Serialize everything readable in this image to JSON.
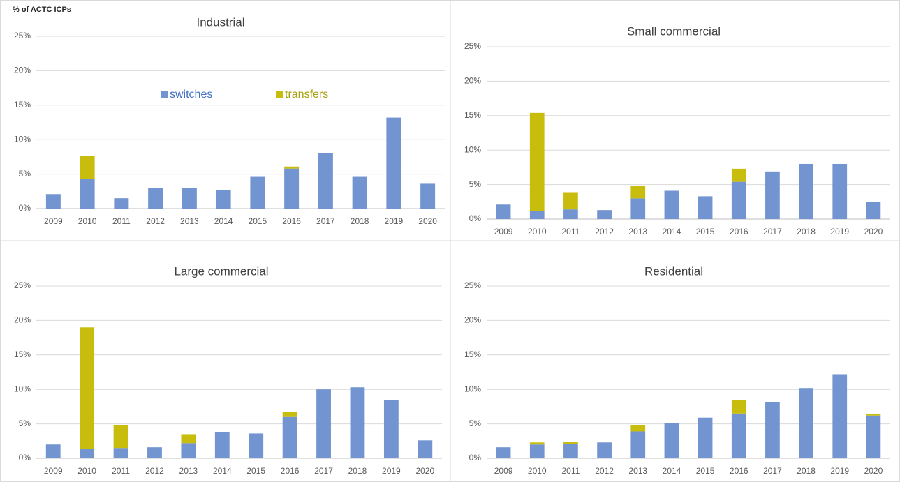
{
  "chart_data": [
    {
      "type": "bar",
      "stacked": true,
      "title": "Industrial",
      "y_label": "% of ACTC ICPs",
      "legend": "top-center",
      "categories": [
        "2009",
        "2010",
        "2011",
        "2012",
        "2013",
        "2014",
        "2015",
        "2016",
        "2017",
        "2018",
        "2019",
        "2020"
      ],
      "series": [
        {
          "name": "switches",
          "color": "#7294d0",
          "values": [
            2.1,
            4.3,
            1.5,
            3.0,
            3.0,
            2.7,
            4.6,
            5.8,
            8.0,
            4.6,
            13.2,
            3.6
          ]
        },
        {
          "name": "transfers",
          "color": "#c8bd0c",
          "values": [
            0,
            3.3,
            0,
            0,
            0,
            0,
            0,
            0.3,
            0,
            0,
            0,
            0
          ]
        }
      ],
      "ylim": [
        0,
        25
      ],
      "yticks": [
        {
          "value": 0,
          "label": "0%"
        },
        {
          "value": 5,
          "label": "5%"
        },
        {
          "value": 10,
          "label": "10%"
        },
        {
          "value": 15,
          "label": "15%"
        },
        {
          "value": 20,
          "label": "20%"
        },
        {
          "value": 25,
          "label": "25%"
        }
      ],
      "grid": true
    },
    {
      "type": "bar",
      "stacked": true,
      "title": "Small commercial",
      "categories": [
        "2009",
        "2010",
        "2011",
        "2012",
        "2013",
        "2014",
        "2015",
        "2016",
        "2017",
        "2018",
        "2019",
        "2020"
      ],
      "series": [
        {
          "name": "switches",
          "color": "#7294d0",
          "values": [
            2.1,
            1.2,
            1.4,
            1.3,
            3.0,
            4.1,
            3.3,
            5.4,
            6.9,
            8.0,
            8.0,
            2.5
          ]
        },
        {
          "name": "transfers",
          "color": "#c8bd0c",
          "values": [
            0,
            14.2,
            2.5,
            0,
            1.8,
            0,
            0,
            1.9,
            0,
            0,
            0,
            0
          ]
        }
      ],
      "ylim": [
        0,
        25
      ],
      "yticks": [
        {
          "value": 0,
          "label": "0%"
        },
        {
          "value": 5,
          "label": "5%"
        },
        {
          "value": 10,
          "label": "10%"
        },
        {
          "value": 15,
          "label": "15%"
        },
        {
          "value": 20,
          "label": "20%"
        },
        {
          "value": 25,
          "label": "25%"
        }
      ],
      "grid": true
    },
    {
      "type": "bar",
      "stacked": true,
      "title": "Large commercial",
      "categories": [
        "2009",
        "2010",
        "2011",
        "2012",
        "2013",
        "2014",
        "2015",
        "2016",
        "2017",
        "2018",
        "2019",
        "2020"
      ],
      "series": [
        {
          "name": "switches",
          "color": "#7294d0",
          "values": [
            2.0,
            1.4,
            1.5,
            1.6,
            2.2,
            3.8,
            3.6,
            6.0,
            10.0,
            10.3,
            8.4,
            2.6
          ]
        },
        {
          "name": "transfers",
          "color": "#c8bd0c",
          "values": [
            0,
            17.6,
            3.3,
            0,
            1.3,
            0,
            0,
            0.7,
            0,
            0,
            0,
            0
          ]
        }
      ],
      "ylim": [
        0,
        25
      ],
      "yticks": [
        {
          "value": 0,
          "label": "0%"
        },
        {
          "value": 5,
          "label": "5%"
        },
        {
          "value": 10,
          "label": "10%"
        },
        {
          "value": 15,
          "label": "15%"
        },
        {
          "value": 20,
          "label": "20%"
        },
        {
          "value": 25,
          "label": "25%"
        }
      ],
      "grid": true
    },
    {
      "type": "bar",
      "stacked": true,
      "title": "Residential",
      "categories": [
        "2009",
        "2010",
        "2011",
        "2012",
        "2013",
        "2014",
        "2015",
        "2016",
        "2017",
        "2018",
        "2019",
        "2020"
      ],
      "series": [
        {
          "name": "switches",
          "color": "#7294d0",
          "values": [
            1.6,
            2.0,
            2.1,
            2.3,
            3.9,
            5.1,
            5.9,
            6.5,
            8.1,
            10.2,
            12.2,
            6.2
          ]
        },
        {
          "name": "transfers",
          "color": "#c8bd0c",
          "values": [
            0,
            0.3,
            0.3,
            0,
            0.9,
            0,
            0,
            2.0,
            0,
            0,
            0,
            0.2
          ]
        }
      ],
      "ylim": [
        0,
        25
      ],
      "yticks": [
        {
          "value": 0,
          "label": "0%"
        },
        {
          "value": 5,
          "label": "5%"
        },
        {
          "value": 10,
          "label": "10%"
        },
        {
          "value": 15,
          "label": "15%"
        },
        {
          "value": 20,
          "label": "20%"
        },
        {
          "value": 25,
          "label": "25%"
        }
      ],
      "grid": true
    }
  ]
}
